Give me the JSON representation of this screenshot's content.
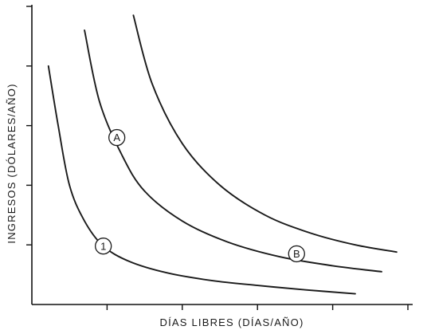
{
  "chart_data": {
    "type": "line",
    "xlabel": "DÍAS LIBRES (DÍAS/AÑO)",
    "ylabel": "INGRESOS (DÓLARES/AÑO)",
    "xlim": [
      0,
      500
    ],
    "ylim": [
      0,
      500
    ],
    "x_ticks": [
      100,
      200,
      300,
      400,
      500
    ],
    "y_ticks": [
      100,
      200,
      300,
      400,
      500
    ],
    "grid": false,
    "series": [
      {
        "x": [
          22,
          35,
          50,
          70,
          95,
          130,
          180,
          240,
          300,
          360,
          430
        ],
        "y": [
          400,
          300,
          200,
          140,
          98,
          72,
          53,
          40,
          32,
          25,
          18
        ]
      },
      {
        "x": [
          70,
          90,
          120,
          150,
          200,
          260,
          330,
          400,
          465
        ],
        "y": [
          460,
          340,
          250,
          190,
          140,
          105,
          80,
          65,
          55
        ]
      },
      {
        "x": [
          135,
          160,
          200,
          250,
          310,
          370,
          430,
          485
        ],
        "y": [
          485,
          370,
          270,
          200,
          150,
          120,
          100,
          88
        ]
      }
    ],
    "annotations": [
      {
        "text": "1",
        "x": 95,
        "y": 98
      },
      {
        "text": "A",
        "x": 113,
        "y": 280
      },
      {
        "text": "B",
        "x": 352,
        "y": 85
      }
    ]
  }
}
